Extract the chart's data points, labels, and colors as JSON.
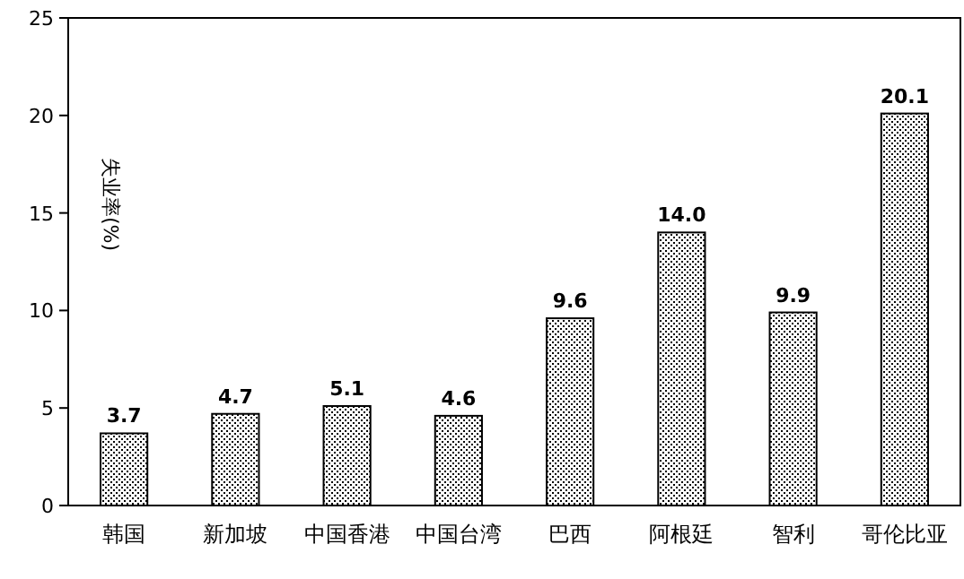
{
  "chart_data": {
    "type": "bar",
    "ylabel": "失业率(%)",
    "categories": [
      "韩国",
      "新加坡",
      "中国香港",
      "中国台湾",
      "巴西",
      "阿根廷",
      "智利",
      "哥伦比亚"
    ],
    "values": [
      3.7,
      4.7,
      5.1,
      4.6,
      9.6,
      14.0,
      9.9,
      20.1
    ],
    "value_labels": [
      "3.7",
      "4.7",
      "5.1",
      "4.6",
      "9.6",
      "14.0",
      "9.9",
      "20.1"
    ],
    "color": "#000000",
    "ylim": [
      0,
      25
    ],
    "yticks": [
      0,
      5,
      10,
      15,
      20,
      25
    ],
    "grid": false
  }
}
